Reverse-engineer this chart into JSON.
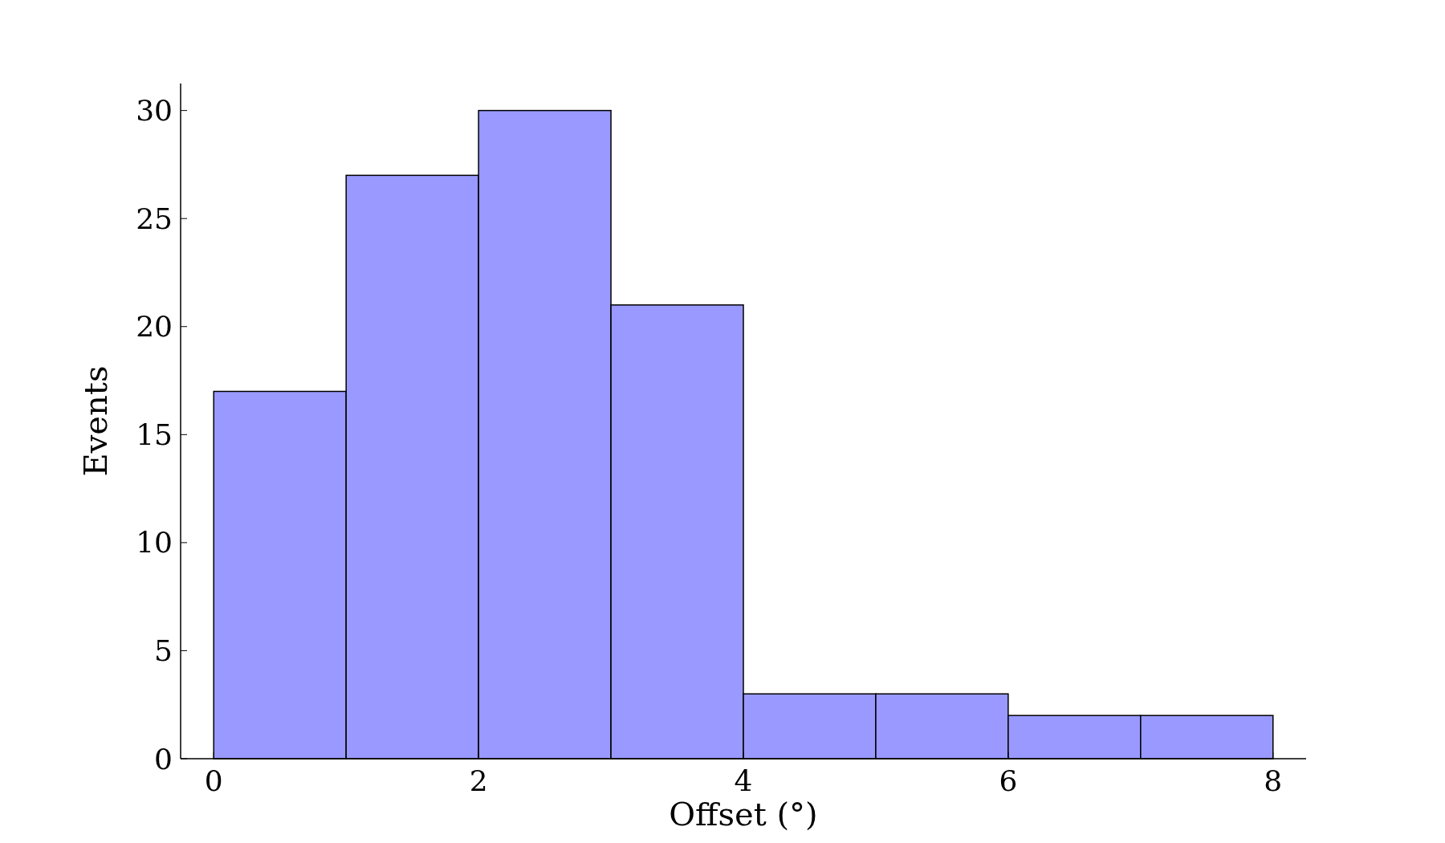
{
  "chart_data": {
    "type": "histogram",
    "xlabel": "Offset (°)",
    "ylabel": "Events",
    "bins": [
      0,
      1,
      2,
      3,
      4,
      5,
      6,
      7,
      8
    ],
    "values": [
      17,
      27,
      30,
      21,
      3,
      3,
      2,
      2
    ],
    "color": "#9999ff",
    "xlim": [
      -0.25,
      8.25
    ],
    "xticks": [
      0,
      2,
      4,
      6,
      8
    ],
    "ylim": [
      0,
      31.25
    ],
    "yticks": [
      0,
      5,
      10,
      15,
      20,
      25,
      30
    ]
  }
}
